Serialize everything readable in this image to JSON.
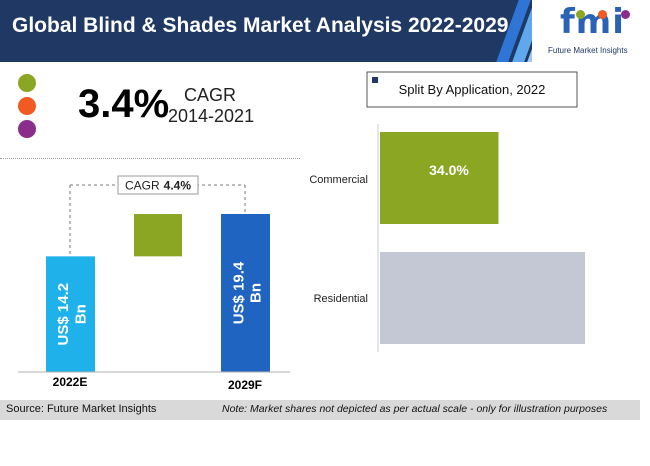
{
  "header": {
    "title": "Global Blind & Shades Market Analysis 2022-2029",
    "logo_text": "fmi",
    "logo_sub": "Future Market Insights"
  },
  "colors": {
    "header_bg": "#1f3864",
    "green": "#8aa623",
    "orange": "#f15a22",
    "purple": "#8b2d8b",
    "blue_light": "#1fb2ea",
    "blue_dark": "#1f64c0",
    "grey_bar": "#c4c8d4"
  },
  "legend_dots": [
    "green",
    "orange",
    "purple"
  ],
  "cagr_summary": {
    "value": "3.4%",
    "label": "CAGR",
    "period": "2014-2021"
  },
  "chart_data": [
    {
      "type": "bar",
      "categories": [
        "2022E",
        "2029F"
      ],
      "values": [
        14.2,
        19.4
      ],
      "value_labels": [
        "US$ 14.2 Bn",
        "US$ 19.4 Bn"
      ],
      "cagr_annotation": {
        "prefix": "CAGR",
        "value": "4.4%"
      },
      "increment": 5.2
    },
    {
      "type": "bar",
      "orientation": "horizontal",
      "title": "Split By Application, 2022",
      "categories": [
        "Commercial",
        "Residential"
      ],
      "values": [
        34.0,
        66.0
      ],
      "data_labels": [
        "34.0%",
        ""
      ]
    }
  ],
  "footer": {
    "source": "Source: Future Market Insights",
    "note": "Note: Market shares not depicted as per actual scale - only for illustration purposes"
  }
}
